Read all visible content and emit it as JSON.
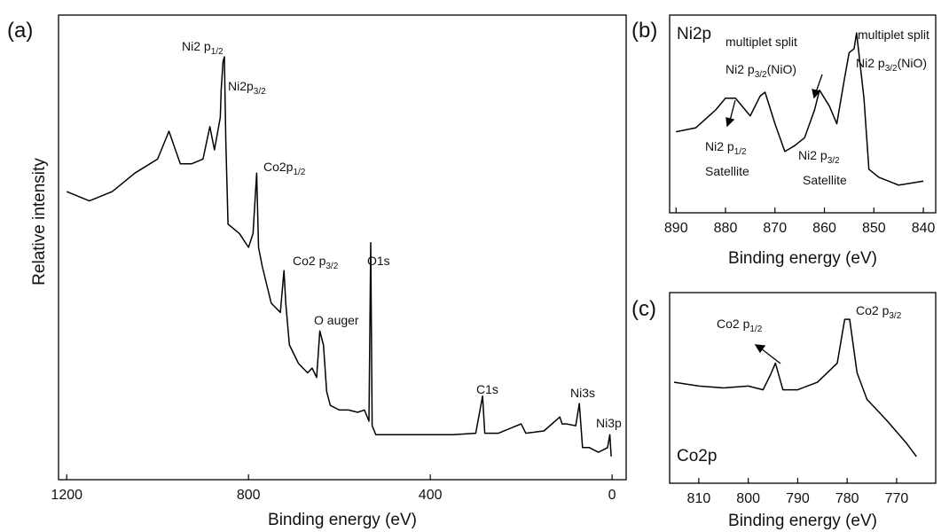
{
  "chart_data": [
    {
      "type": "line",
      "panel_label": "(a)",
      "xlabel": "Binding energy (eV)",
      "ylabel": "Relative intensity",
      "xlim": [
        1218,
        -31
      ],
      "xticks": [
        1200,
        800,
        400,
        0
      ],
      "ylim": [
        0,
        100
      ],
      "color": "#000000",
      "x": [
        1200,
        1150,
        1100,
        1050,
        1000,
        975,
        950,
        925,
        900,
        885,
        875,
        862,
        860,
        856,
        853,
        850,
        845,
        820,
        800,
        790,
        782,
        778,
        770,
        750,
        730,
        722,
        718,
        710,
        690,
        670,
        660,
        650,
        643,
        635,
        628,
        620,
        600,
        580,
        560,
        545,
        535,
        531,
        528,
        520,
        500,
        450,
        400,
        350,
        300,
        285,
        280,
        250,
        200,
        190,
        150,
        115,
        110,
        100,
        80,
        72,
        65,
        50,
        30,
        10,
        5,
        2
      ],
      "values": [
        62,
        60,
        62,
        66,
        69,
        75,
        68,
        68,
        69,
        76,
        71,
        78,
        84,
        90,
        91,
        73,
        55,
        53,
        50,
        53,
        66,
        50,
        46,
        38,
        36,
        45,
        38,
        29,
        25,
        23,
        24,
        22,
        32,
        29,
        19,
        16,
        15,
        15,
        14.5,
        15,
        12.6,
        51,
        11.6,
        9.7,
        9.7,
        9.7,
        9.7,
        9.7,
        10,
        18,
        10,
        10,
        12,
        10,
        10.5,
        13.5,
        12,
        12,
        11.6,
        16.4,
        6.9,
        6.9,
        5.9,
        6.9,
        9.7,
        5
      ],
      "annotations": [
        {
          "text": "Ni2 p",
          "sub": "1/2"
        },
        {
          "text": "Ni2p",
          "sub": "3/2"
        },
        {
          "text": "Co2p",
          "sub": "1/2"
        },
        {
          "text": "Co2 p",
          "sub": "3/2"
        },
        {
          "text": "O auger"
        },
        {
          "text": "O1s"
        },
        {
          "text": "C1s"
        },
        {
          "text": "Ni3s"
        },
        {
          "text": "Ni3p"
        }
      ]
    },
    {
      "type": "line",
      "panel_label": "(b)",
      "title": "Ni2p",
      "xlabel": "Binding energy (eV)",
      "xlim": [
        891.3,
        837.5
      ],
      "xticks": [
        890,
        880,
        870,
        860,
        850,
        840
      ],
      "ylim": [
        0,
        100
      ],
      "color": "#000000",
      "x": [
        890,
        886,
        882,
        880,
        878,
        876,
        875,
        873,
        872,
        870,
        868,
        866,
        864,
        862,
        861,
        859,
        857.5,
        856,
        855,
        854,
        853.5,
        852,
        851,
        849,
        845,
        840
      ],
      "values": [
        41,
        43,
        52,
        58,
        58,
        52,
        49,
        59,
        61,
        45,
        31,
        34,
        38,
        52,
        62,
        54,
        45,
        67,
        81,
        83,
        91,
        58,
        22,
        18,
        14,
        16
      ],
      "annotations": [
        {
          "text": "multiplet split"
        },
        {
          "text": "Ni2 p",
          "sub": "3/2",
          "suffix": "(NiO)"
        },
        {
          "text": "multiplet split"
        },
        {
          "text": "Ni2 p",
          "sub": "3/2",
          "suffix": "(NiO)"
        },
        {
          "text": "Ni2 p",
          "sub": "1/2"
        },
        {
          "text": "Satellite"
        },
        {
          "text": "Ni2 p",
          "sub": "3/2"
        },
        {
          "text": "Satellite"
        }
      ]
    },
    {
      "type": "line",
      "panel_label": "(c)",
      "title": "Co2p",
      "xlabel": "Binding energy (eV)",
      "xlim": [
        815.9,
        762.1
      ],
      "xticks": [
        810,
        800,
        790,
        780,
        770
      ],
      "ylim": [
        0,
        100
      ],
      "color": "#000000",
      "x": [
        815,
        810,
        805,
        800,
        797,
        795.5,
        794.5,
        793,
        790,
        786,
        782,
        780.5,
        779.5,
        778,
        776,
        772,
        768,
        766
      ],
      "values": [
        53,
        51,
        50,
        51,
        49,
        57,
        63,
        49,
        49,
        53,
        63,
        86,
        86,
        58,
        44,
        33,
        21,
        14
      ],
      "annotations": [
        {
          "text": "Co2 p",
          "sub": "1/2"
        },
        {
          "text": "Co2 p",
          "sub": "3/2"
        }
      ]
    }
  ]
}
